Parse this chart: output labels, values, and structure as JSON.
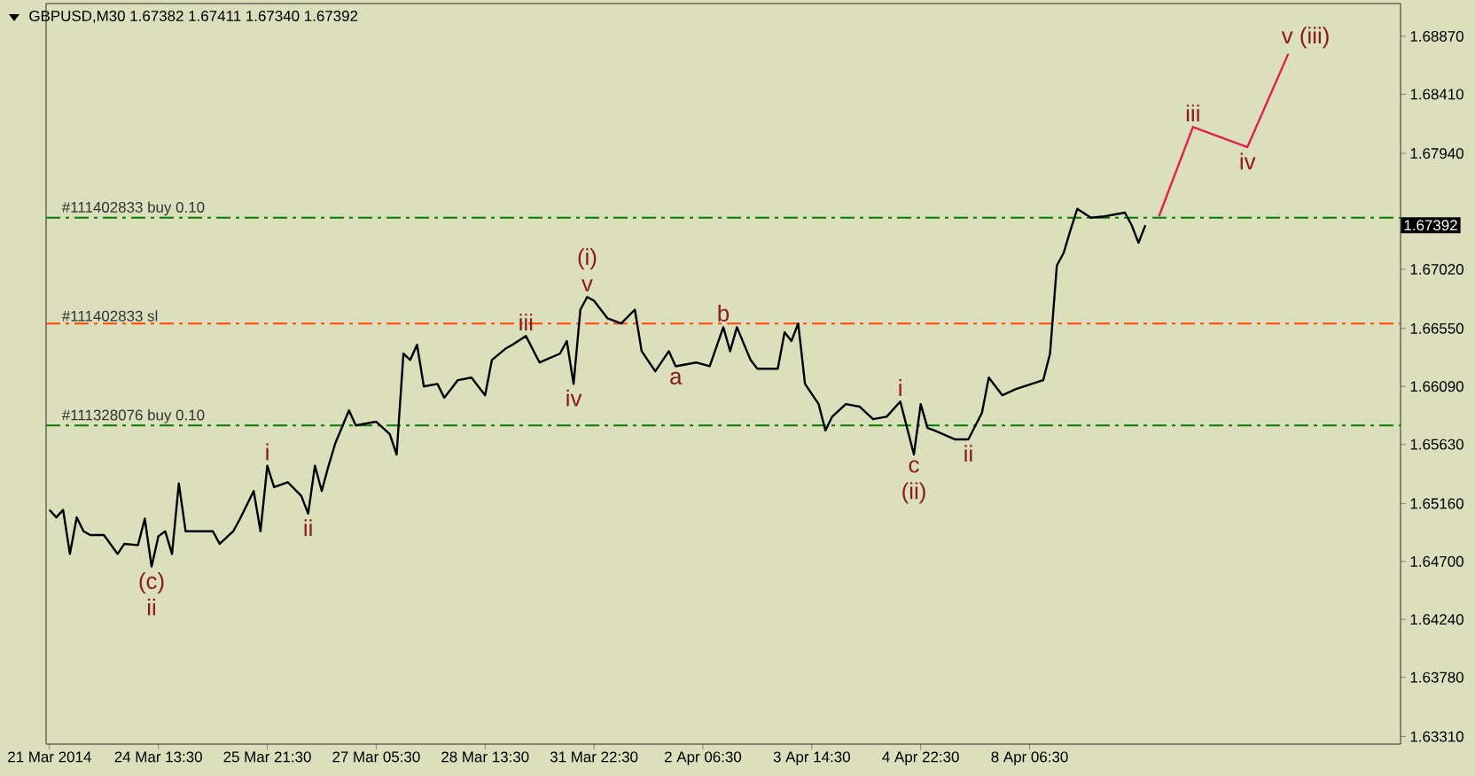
{
  "chart_data": {
    "type": "line",
    "title": "GBPUSD,M30  1.67382 1.67411 1.67340 1.67392",
    "categories": [
      "21 Mar 2014",
      null,
      null,
      null,
      null,
      null,
      null,
      null,
      null,
      null,
      null,
      null,
      null,
      null,
      null,
      null,
      "24 Mar 13:30",
      null,
      null,
      null,
      null,
      null,
      null,
      null,
      null,
      null,
      null,
      null,
      null,
      null,
      null,
      null,
      "25 Mar 21:30",
      null,
      null,
      null,
      null,
      null,
      null,
      null,
      null,
      null,
      null,
      null,
      null,
      null,
      null,
      null,
      "27 Mar 05:30",
      null,
      null,
      null,
      null,
      null,
      null,
      null,
      null,
      null,
      null,
      null,
      null,
      null,
      null,
      null,
      "28 Mar 13:30",
      null,
      null,
      null,
      null,
      null,
      null,
      null,
      null,
      null,
      null,
      null,
      null,
      null,
      null,
      null,
      "31 Mar 22:30",
      null,
      null,
      null,
      null,
      null,
      null,
      null,
      null,
      null,
      null,
      null,
      null,
      null,
      null,
      null,
      "2 Apr 06:30",
      null,
      null,
      null,
      null,
      null,
      null,
      null,
      null,
      null,
      null,
      null,
      null,
      null,
      null,
      null,
      "3 Apr 14:30",
      null,
      null,
      null,
      null,
      null,
      null,
      null,
      null,
      null,
      null,
      null,
      null,
      null,
      null,
      null,
      "4 Apr 22:30",
      null,
      null,
      null,
      null,
      null,
      null,
      null,
      null,
      null,
      null,
      null,
      null,
      null,
      null,
      null,
      "8 Apr 06:30",
      null,
      null,
      null,
      null,
      null,
      null,
      null,
      null,
      null,
      null,
      null,
      null,
      null,
      null,
      null,
      null,
      null,
      null,
      null,
      null,
      null,
      null,
      null,
      null,
      null,
      null,
      null,
      null,
      null,
      null,
      null,
      null,
      null,
      null,
      null,
      null,
      null,
      null,
      null,
      null,
      null,
      null,
      null,
      null,
      null,
      null,
      null,
      null,
      null,
      null,
      null,
      null,
      null,
      null
    ],
    "ylim": [
      1.6325,
      1.6913
    ],
    "yticks": [
      {
        "value": 1.6887,
        "label": "1.68870"
      },
      {
        "value": 1.6841,
        "label": "1.68410"
      },
      {
        "value": 1.6794,
        "label": "1.67940"
      },
      {
        "value": 1.6702,
        "label": "1.67020"
      },
      {
        "value": 1.6655,
        "label": "1.66550"
      },
      {
        "value": 1.6609,
        "label": "1.66090"
      },
      {
        "value": 1.6563,
        "label": "1.65630"
      },
      {
        "value": 1.6516,
        "label": "1.65160"
      },
      {
        "value": 1.647,
        "label": "1.64700"
      },
      {
        "value": 1.6424,
        "label": "1.64240"
      },
      {
        "value": 1.6378,
        "label": "1.63780"
      },
      {
        "value": 1.6331,
        "label": "1.63310"
      }
    ],
    "grid": false,
    "marker": "none",
    "series": [
      {
        "color": "#000000",
        "values": [
          1.6511,
          1.6505,
          1.6511,
          1.6476,
          1.6505,
          1.6494,
          1.6491,
          null,
          1.6491,
          null,
          1.6476,
          1.6484,
          null,
          1.6483,
          1.6504,
          1.6466,
          1.649,
          1.6494,
          1.6476,
          1.6532,
          1.6494,
          1.6494,
          null,
          null,
          1.6494,
          1.6484,
          null,
          1.6494,
          1.6504,
          null,
          1.6526,
          1.6494,
          1.6546,
          1.6529,
          null,
          1.6533,
          null,
          1.6522,
          1.6508,
          1.6546,
          1.6526,
          1.6546,
          1.6564,
          null,
          1.659,
          1.6578,
          null,
          null,
          1.6581,
          null,
          1.6571,
          1.6555,
          1.6635,
          1.663,
          1.6642,
          1.6609,
          null,
          1.6611,
          1.66,
          null,
          1.6614,
          null,
          1.6616,
          null,
          1.6602,
          1.663,
          null,
          1.6639,
          1.6642,
          null,
          1.6649,
          null,
          1.6628,
          null,
          null,
          1.6635,
          1.6645,
          1.6611,
          1.667,
          1.668,
          1.6677,
          null,
          1.6663,
          null,
          1.6659,
          null,
          1.667,
          1.6637,
          null,
          1.6621,
          null,
          1.6637,
          1.6625,
          null,
          null,
          1.6628,
          null,
          1.6625,
          null,
          1.6656,
          1.6637,
          1.6656,
          null,
          1.663,
          1.6623,
          null,
          null,
          1.6623,
          1.6652,
          1.6645,
          1.6659,
          1.6611,
          null,
          1.6595,
          1.6574,
          1.6585,
          null,
          1.6595,
          null,
          1.6593,
          null,
          1.6583,
          null,
          1.6585,
          null,
          1.6597,
          null,
          1.6555,
          1.6595,
          1.6576,
          1.6574,
          null,
          null,
          1.6567,
          null,
          1.6567,
          null,
          1.6588,
          1.6616,
          null,
          1.6602,
          null,
          1.6607,
          null,
          null,
          null,
          1.6614,
          1.6635,
          1.6705,
          1.6715,
          1.6733,
          1.675,
          null,
          1.6743,
          null,
          1.6744,
          null,
          null,
          1.6747,
          1.6737,
          1.6723,
          1.6737,
          null,
          null,
          null,
          null,
          null,
          null,
          null,
          null,
          null,
          null,
          null,
          null,
          null,
          null,
          null,
          null,
          null,
          null,
          null,
          null,
          null,
          null,
          null,
          null,
          null,
          null,
          null,
          null,
          null,
          null,
          null,
          null,
          null,
          null,
          null,
          null,
          null
        ],
        "value_labels": [
          null,
          null,
          null,
          null,
          null,
          null,
          null,
          null,
          null,
          null,
          null,
          null,
          null,
          null,
          null,
          "(c) ii",
          null,
          null,
          null,
          null,
          null,
          null,
          null,
          null,
          null,
          null,
          null,
          null,
          null,
          null,
          null,
          null,
          "i",
          null,
          null,
          null,
          null,
          null,
          "ii",
          null,
          null,
          null,
          null,
          null,
          null,
          null,
          null,
          null,
          null,
          null,
          null,
          null,
          null,
          null,
          null,
          null,
          null,
          null,
          null,
          null,
          null,
          null,
          null,
          null,
          null,
          null,
          null,
          null,
          null,
          null,
          "iii",
          null,
          null,
          null,
          null,
          null,
          null,
          "iv",
          null,
          "(i) v",
          null,
          null,
          null,
          null,
          null,
          null,
          null,
          null,
          null,
          null,
          null,
          null,
          "a",
          null,
          null,
          null,
          null,
          null,
          null,
          "b",
          null,
          null,
          null,
          null,
          null,
          null,
          null,
          null,
          null,
          null,
          null,
          null,
          null,
          null,
          null,
          null,
          null,
          null,
          null,
          null,
          null,
          null,
          null,
          null,
          null,
          "i",
          null,
          "c (ii)",
          null,
          null,
          null,
          null,
          null,
          null,
          null,
          "ii",
          null,
          null,
          null,
          null,
          null,
          null,
          null,
          null,
          null,
          null,
          null,
          null,
          null,
          null,
          null,
          null,
          null,
          null,
          null,
          null,
          null,
          null,
          null,
          null,
          null,
          null,
          null,
          null,
          null,
          null,
          null,
          null,
          null,
          null,
          null,
          null,
          null,
          null,
          null,
          null,
          null,
          null,
          null,
          null,
          null,
          null,
          null,
          null,
          null,
          null,
          null,
          null,
          null,
          null,
          null,
          null,
          null,
          null,
          null,
          null,
          null,
          null,
          null
        ]
      },
      {
        "color": "#e0204a",
        "values": [
          null,
          null,
          null,
          null,
          null,
          null,
          null,
          null,
          null,
          null,
          null,
          null,
          null,
          null,
          null,
          null,
          null,
          null,
          null,
          null,
          null,
          null,
          null,
          null,
          null,
          null,
          null,
          null,
          null,
          null,
          null,
          null,
          null,
          null,
          null,
          null,
          null,
          null,
          null,
          null,
          null,
          null,
          null,
          null,
          null,
          null,
          null,
          null,
          null,
          null,
          null,
          null,
          null,
          null,
          null,
          null,
          null,
          null,
          null,
          null,
          null,
          null,
          null,
          null,
          null,
          null,
          null,
          null,
          null,
          null,
          null,
          null,
          null,
          null,
          null,
          null,
          null,
          null,
          null,
          null,
          null,
          null,
          null,
          null,
          null,
          null,
          null,
          null,
          null,
          null,
          null,
          null,
          null,
          null,
          null,
          null,
          null,
          null,
          null,
          null,
          null,
          null,
          null,
          null,
          null,
          null,
          null,
          null,
          null,
          null,
          null,
          null,
          null,
          null,
          null,
          null,
          null,
          null,
          null,
          null,
          null,
          null,
          null,
          null,
          null,
          null,
          null,
          null,
          null,
          null,
          null,
          null,
          null,
          null,
          null,
          null,
          null,
          null,
          null,
          null,
          null,
          null,
          null,
          null,
          null,
          null,
          null,
          null,
          null,
          null,
          null,
          null,
          null,
          null,
          null,
          null,
          null,
          null,
          null,
          null,
          null,
          null,
          null,
          1.6744,
          null,
          null,
          null,
          null,
          1.6815,
          null,
          null,
          null,
          null,
          null,
          null,
          null,
          1.6799,
          null,
          null,
          null,
          null,
          null,
          1.6873,
          null,
          null,
          null,
          null,
          null,
          null,
          null,
          null,
          null,
          null,
          null,
          null,
          null,
          null,
          null,
          null
        ],
        "value_labels": [
          null,
          null,
          null,
          null,
          null,
          null,
          null,
          null,
          null,
          null,
          null,
          null,
          null,
          null,
          null,
          null,
          null,
          null,
          null,
          null,
          null,
          null,
          null,
          null,
          null,
          null,
          null,
          null,
          null,
          null,
          null,
          null,
          null,
          null,
          null,
          null,
          null,
          null,
          null,
          null,
          null,
          null,
          null,
          null,
          null,
          null,
          null,
          null,
          null,
          null,
          null,
          null,
          null,
          null,
          null,
          null,
          null,
          null,
          null,
          null,
          null,
          null,
          null,
          null,
          null,
          null,
          null,
          null,
          null,
          null,
          null,
          null,
          null,
          null,
          null,
          null,
          null,
          null,
          null,
          null,
          null,
          null,
          null,
          null,
          null,
          null,
          null,
          null,
          null,
          null,
          null,
          null,
          null,
          null,
          null,
          null,
          null,
          null,
          null,
          null,
          null,
          null,
          null,
          null,
          null,
          null,
          null,
          null,
          null,
          null,
          null,
          null,
          null,
          null,
          null,
          null,
          null,
          null,
          null,
          null,
          null,
          null,
          null,
          null,
          null,
          null,
          null,
          null,
          null,
          null,
          null,
          null,
          null,
          null,
          null,
          null,
          null,
          null,
          null,
          null,
          null,
          null,
          null,
          null,
          null,
          null,
          null,
          null,
          null,
          null,
          null,
          null,
          null,
          null,
          null,
          null,
          null,
          null,
          null,
          null,
          null,
          null,
          null,
          null,
          null,
          null,
          null,
          null,
          "iii",
          null,
          null,
          null,
          null,
          null,
          null,
          null,
          "iv",
          null,
          null,
          null,
          null,
          null,
          "v (iii)",
          null,
          null,
          null,
          null,
          null,
          null,
          null,
          null,
          null,
          null,
          null,
          null,
          null,
          null,
          null,
          null
        ]
      }
    ],
    "ref_lines": [
      {
        "axis": "y",
        "value": 1.6743,
        "label": "#111402833 buy 0.10",
        "color": "#008000",
        "line_style": "dashed"
      },
      {
        "axis": "y",
        "value": 1.6659,
        "label": "#111402833 sl",
        "color": "#ff4500",
        "line_style": "dashed"
      },
      {
        "axis": "y",
        "value": 1.6578,
        "label": "#111328076 buy 0.10",
        "color": "#008000",
        "line_style": "dashed"
      }
    ],
    "annotations": [
      "1.67392"
    ]
  }
}
